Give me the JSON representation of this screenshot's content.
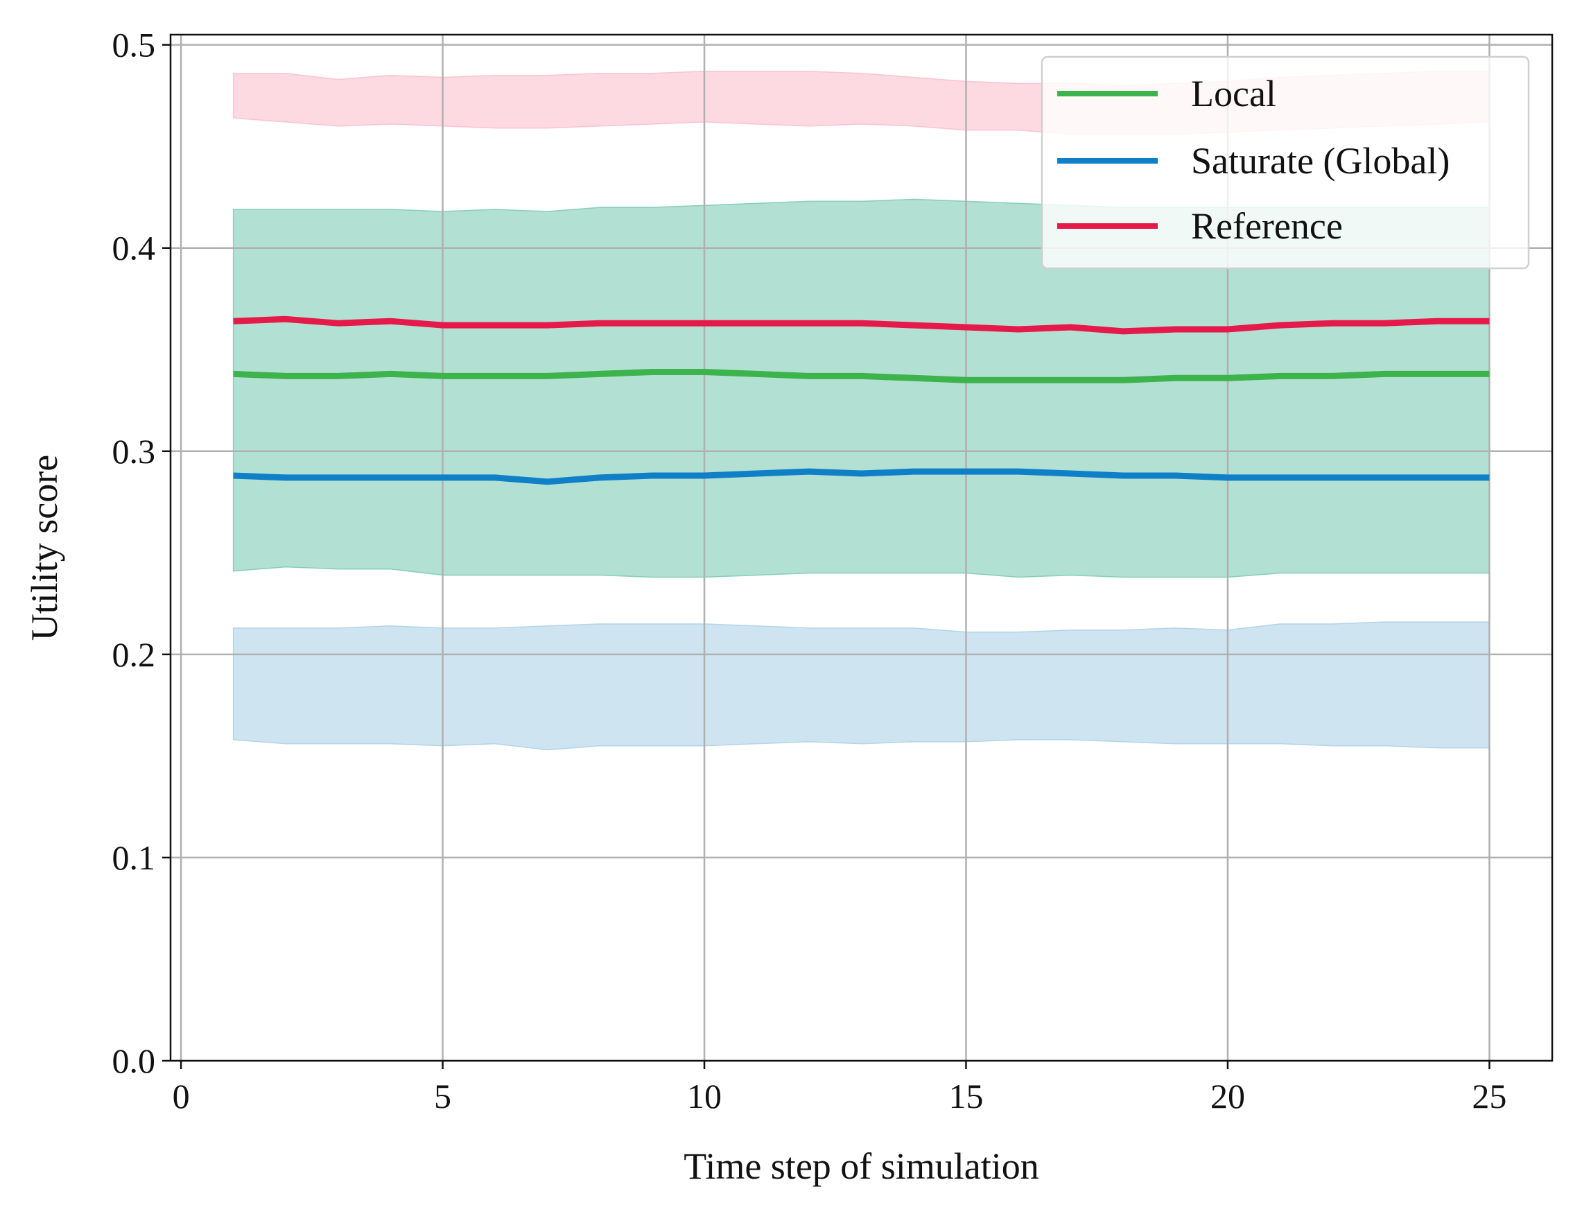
{
  "chart_data": {
    "type": "line",
    "xlabel": "Time step of simulation",
    "ylabel": "Utility score",
    "xlim": [
      -0.2,
      26.2
    ],
    "ylim": [
      0.0,
      0.505
    ],
    "xticks": [
      0,
      5,
      10,
      15,
      20,
      25
    ],
    "yticks": [
      0.0,
      0.1,
      0.2,
      0.3,
      0.4,
      0.5
    ],
    "xtick_labels": [
      "0",
      "5",
      "10",
      "15",
      "20",
      "25"
    ],
    "ytick_labels": [
      "0.0",
      "0.1",
      "0.2",
      "0.3",
      "0.4",
      "0.5"
    ],
    "grid": true,
    "legend_position": "top-right",
    "x": [
      1,
      2,
      3,
      4,
      5,
      6,
      7,
      8,
      9,
      10,
      11,
      12,
      13,
      14,
      15,
      16,
      17,
      18,
      19,
      20,
      21,
      22,
      23,
      24,
      25
    ],
    "series": [
      {
        "name": "Local",
        "color": "#3cb44b",
        "band_color": "#66c2a5",
        "values": [
          0.338,
          0.337,
          0.337,
          0.338,
          0.337,
          0.337,
          0.337,
          0.338,
          0.339,
          0.339,
          0.338,
          0.337,
          0.337,
          0.336,
          0.335,
          0.335,
          0.335,
          0.335,
          0.336,
          0.336,
          0.337,
          0.337,
          0.338,
          0.338,
          0.338
        ],
        "lower": [
          0.241,
          0.243,
          0.242,
          0.242,
          0.239,
          0.239,
          0.239,
          0.239,
          0.238,
          0.238,
          0.239,
          0.24,
          0.24,
          0.24,
          0.24,
          0.238,
          0.239,
          0.238,
          0.238,
          0.238,
          0.24,
          0.24,
          0.24,
          0.24,
          0.24
        ],
        "upper": [
          0.419,
          0.419,
          0.419,
          0.419,
          0.418,
          0.419,
          0.418,
          0.42,
          0.42,
          0.421,
          0.422,
          0.423,
          0.423,
          0.424,
          0.423,
          0.422,
          0.421,
          0.42,
          0.42,
          0.42,
          0.42,
          0.42,
          0.42,
          0.42,
          0.42
        ]
      },
      {
        "name": "Saturate (Global)",
        "color": "#0f80c8",
        "band_color": "#9ecae1",
        "values": [
          0.288,
          0.287,
          0.287,
          0.287,
          0.287,
          0.287,
          0.285,
          0.287,
          0.288,
          0.288,
          0.289,
          0.29,
          0.289,
          0.29,
          0.29,
          0.29,
          0.289,
          0.288,
          0.288,
          0.287,
          0.287,
          0.287,
          0.287,
          0.287,
          0.287
        ],
        "lower": [
          0.158,
          0.156,
          0.156,
          0.156,
          0.155,
          0.156,
          0.153,
          0.155,
          0.155,
          0.155,
          0.156,
          0.157,
          0.156,
          0.157,
          0.157,
          0.158,
          0.158,
          0.157,
          0.156,
          0.156,
          0.156,
          0.155,
          0.155,
          0.154,
          0.154
        ],
        "upper": [
          0.213,
          0.213,
          0.213,
          0.214,
          0.213,
          0.213,
          0.214,
          0.215,
          0.215,
          0.215,
          0.214,
          0.213,
          0.213,
          0.213,
          0.211,
          0.211,
          0.212,
          0.212,
          0.213,
          0.212,
          0.215,
          0.215,
          0.216,
          0.216,
          0.216
        ]
      },
      {
        "name": "Reference",
        "color": "#e6194b",
        "band_color": "#fbb4c6",
        "values": [
          0.364,
          0.365,
          0.363,
          0.364,
          0.362,
          0.362,
          0.362,
          0.363,
          0.363,
          0.363,
          0.363,
          0.363,
          0.363,
          0.362,
          0.361,
          0.36,
          0.361,
          0.359,
          0.36,
          0.36,
          0.362,
          0.363,
          0.363,
          0.364,
          0.364
        ],
        "lower": [
          0.464,
          0.462,
          0.46,
          0.461,
          0.46,
          0.459,
          0.459,
          0.46,
          0.461,
          0.462,
          0.461,
          0.46,
          0.461,
          0.46,
          0.458,
          0.458,
          0.456,
          0.456,
          0.456,
          0.457,
          0.458,
          0.459,
          0.46,
          0.461,
          0.462
        ],
        "upper": [
          0.486,
          0.486,
          0.483,
          0.485,
          0.484,
          0.485,
          0.485,
          0.486,
          0.486,
          0.487,
          0.487,
          0.487,
          0.486,
          0.484,
          0.482,
          0.481,
          0.481,
          0.48,
          0.481,
          0.482,
          0.484,
          0.485,
          0.486,
          0.487,
          0.487
        ]
      }
    ]
  }
}
